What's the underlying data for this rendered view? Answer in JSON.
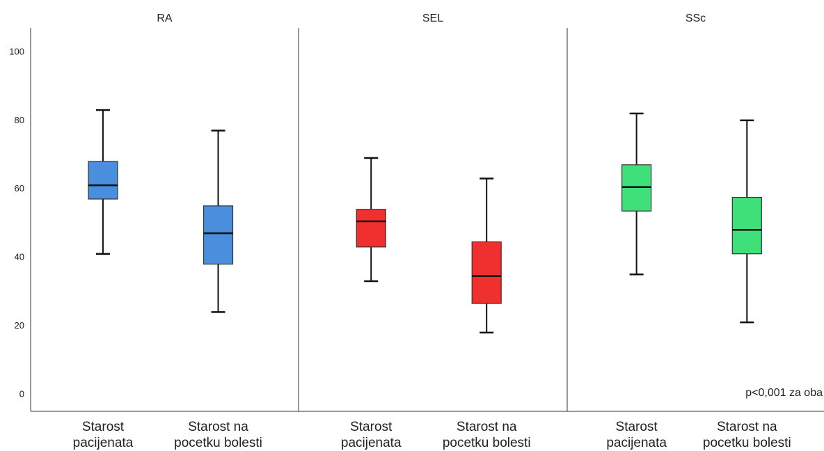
{
  "chart_data": {
    "type": "box",
    "ylim": [
      -5,
      107
    ],
    "yticks": [
      0,
      20,
      40,
      60,
      80,
      100
    ],
    "categories": [
      [
        "Starost",
        "pacijenata"
      ],
      [
        "Starost na",
        "pocetku bolesti"
      ]
    ],
    "annotation": "p<0,001 za oba",
    "panels": [
      {
        "title": "RA",
        "color": "#4a8fdd",
        "boxes": [
          {
            "min": 41,
            "q1": 57,
            "median": 61,
            "q3": 68,
            "max": 83
          },
          {
            "min": 24,
            "q1": 38,
            "median": 47,
            "q3": 55,
            "max": 77
          }
        ]
      },
      {
        "title": "SEL",
        "color": "#f0302f",
        "boxes": [
          {
            "min": 33,
            "q1": 43,
            "median": 50.5,
            "q3": 54,
            "max": 69
          },
          {
            "min": 18,
            "q1": 26.5,
            "median": 34.5,
            "q3": 44.5,
            "max": 63
          }
        ]
      },
      {
        "title": "SSc",
        "color": "#3fe07a",
        "boxes": [
          {
            "min": 35,
            "q1": 53.5,
            "median": 60.5,
            "q3": 67,
            "max": 82
          },
          {
            "min": 21,
            "q1": 41,
            "median": 48,
            "q3": 57.5,
            "max": 80
          }
        ]
      }
    ]
  }
}
